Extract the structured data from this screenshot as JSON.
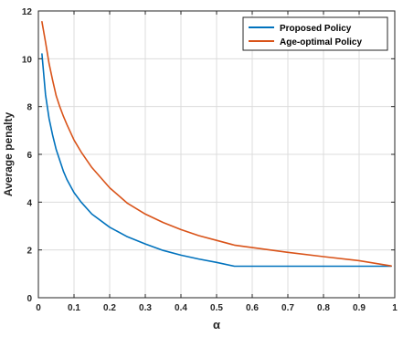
{
  "chart_data": {
    "type": "line",
    "xlabel": "α",
    "ylabel": "Average penalty",
    "xlim": [
      0,
      1
    ],
    "ylim": [
      0,
      12
    ],
    "xticks": [
      0,
      0.1,
      0.2,
      0.3,
      0.4,
      0.5,
      0.6,
      0.7,
      0.8,
      0.9,
      1
    ],
    "xtick_labels": [
      "0",
      "0.1",
      "0.2",
      "0.3",
      "0.4",
      "0.5",
      "0.6",
      "0.7",
      "0.8",
      "0.9",
      "1"
    ],
    "yticks": [
      0,
      2,
      4,
      6,
      8,
      10,
      12
    ],
    "ytick_labels": [
      "0",
      "2",
      "4",
      "6",
      "8",
      "10",
      "12"
    ],
    "grid": true,
    "legend_position": "top-right",
    "series": [
      {
        "name": "Proposed Policy",
        "color": "#0072BD",
        "x": [
          0.01,
          0.02,
          0.03,
          0.04,
          0.05,
          0.06,
          0.07,
          0.08,
          0.1,
          0.12,
          0.15,
          0.2,
          0.25,
          0.3,
          0.35,
          0.4,
          0.45,
          0.5,
          0.55,
          0.6,
          0.7,
          0.8,
          0.9,
          0.99
        ],
        "y": [
          10.2,
          8.5,
          7.5,
          6.8,
          6.2,
          5.75,
          5.3,
          4.95,
          4.4,
          4.0,
          3.5,
          2.95,
          2.55,
          2.25,
          1.98,
          1.78,
          1.62,
          1.48,
          1.32,
          1.32,
          1.32,
          1.32,
          1.32,
          1.32
        ]
      },
      {
        "name": "Age-optimal Policy",
        "color": "#D95319",
        "x": [
          0.01,
          0.02,
          0.03,
          0.04,
          0.05,
          0.06,
          0.07,
          0.08,
          0.1,
          0.12,
          0.15,
          0.2,
          0.25,
          0.3,
          0.35,
          0.4,
          0.45,
          0.5,
          0.55,
          0.6,
          0.7,
          0.8,
          0.9,
          0.99
        ],
        "y": [
          11.55,
          10.7,
          9.8,
          9.1,
          8.45,
          8.0,
          7.6,
          7.25,
          6.6,
          6.1,
          5.45,
          4.6,
          3.95,
          3.5,
          3.15,
          2.85,
          2.6,
          2.4,
          2.2,
          2.1,
          1.9,
          1.72,
          1.55,
          1.33
        ]
      }
    ]
  }
}
